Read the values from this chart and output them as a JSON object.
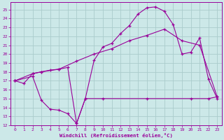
{
  "xlabel": "Windchill (Refroidissement éolien,°C)",
  "bg_color": "#cce8e8",
  "grid_color": "#aacccc",
  "line_color": "#990099",
  "xlim": [
    -0.5,
    23.5
  ],
  "ylim": [
    12,
    25.8
  ],
  "xticks": [
    0,
    1,
    2,
    3,
    4,
    5,
    6,
    7,
    8,
    9,
    10,
    11,
    12,
    13,
    14,
    15,
    16,
    17,
    18,
    19,
    20,
    21,
    22,
    23
  ],
  "yticks": [
    12,
    13,
    14,
    15,
    16,
    17,
    18,
    19,
    20,
    21,
    22,
    23,
    24,
    25
  ],
  "curve1_x": [
    0,
    1,
    2,
    3,
    4,
    5,
    6,
    7,
    8,
    9,
    10,
    11,
    12,
    13,
    14,
    15,
    16,
    17,
    18,
    19,
    20,
    21,
    22,
    23
  ],
  "curve1_y": [
    17.0,
    16.7,
    17.8,
    18.0,
    18.2,
    18.3,
    18.5,
    12.2,
    15.0,
    19.3,
    20.8,
    21.2,
    22.3,
    23.2,
    24.5,
    25.2,
    25.3,
    24.8,
    23.3,
    20.0,
    20.2,
    21.8,
    17.2,
    15.0
  ],
  "curve2_x": [
    0,
    2,
    3,
    5,
    7,
    9,
    11,
    13,
    15,
    17,
    19,
    21,
    23
  ],
  "curve2_y": [
    17.0,
    17.8,
    18.0,
    18.3,
    19.2,
    20.0,
    20.6,
    21.5,
    22.1,
    22.8,
    21.5,
    21.0,
    15.2
  ],
  "curve3_x": [
    0,
    2,
    3,
    4,
    5,
    6,
    7,
    8,
    10,
    15,
    20,
    22,
    23
  ],
  "curve3_y": [
    17.0,
    17.5,
    14.8,
    13.8,
    13.7,
    13.3,
    12.2,
    15.0,
    15.0,
    15.0,
    15.0,
    15.0,
    15.2
  ]
}
